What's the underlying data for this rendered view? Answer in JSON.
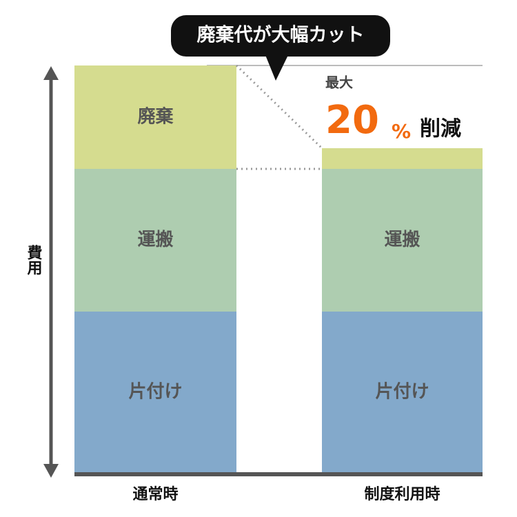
{
  "chart_data": {
    "type": "stacked_bar",
    "title": "廃棄代が大幅カット",
    "y_label": "費用",
    "categories": [
      "通常時",
      "制度利用時"
    ],
    "series": [
      {
        "name": "片付け",
        "color": "#83a9cb",
        "values": [
          234,
          234
        ]
      },
      {
        "name": "運搬",
        "color": "#aecdb0",
        "values": [
          207,
          207
        ]
      },
      {
        "name": "廃棄",
        "color": "#d5dc8f",
        "values": [
          150,
          30
        ]
      }
    ],
    "ylim": [
      0,
      600
    ],
    "annotation": {
      "prefix": "最大",
      "number": 20,
      "unit": "%",
      "suffix": "削減"
    }
  }
}
